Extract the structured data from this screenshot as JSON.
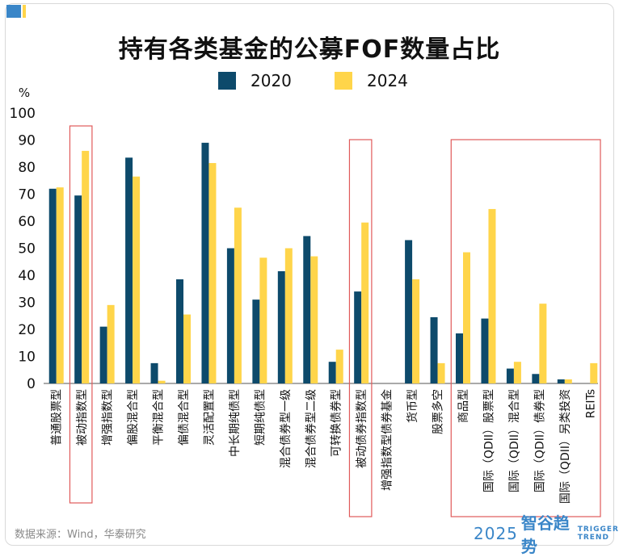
{
  "title": "持有各类基金的公募FOF数量占比",
  "unit_label": "%",
  "source": "数据来源：Wind，华泰研究",
  "brand": {
    "year": "2025",
    "name": "智谷趋势",
    "en_line1": "TRIGGER",
    "en_line2": "TREND"
  },
  "colors": {
    "s2020": "#0d4a6b",
    "s2024": "#ffd54a",
    "highlight": "#e05a5a",
    "axis": "#555555"
  },
  "chart_data": {
    "type": "bar",
    "title": "持有各类基金的公募FOF数量占比",
    "ylabel": "%",
    "ylim": [
      0,
      100
    ],
    "yticks": [
      0,
      10,
      20,
      30,
      40,
      50,
      60,
      70,
      80,
      90,
      100
    ],
    "grid": false,
    "legend": "top-center",
    "categories": [
      "普通股票型",
      "被动指数型",
      "增强指数型",
      "偏股混合型",
      "平衡混合型",
      "偏债混合型",
      "灵活配置型",
      "中长期纯债型",
      "短期纯债型",
      "混合债券型一级",
      "混合债券型二级",
      "可转换债券型",
      "被动债券指数型",
      "增强指数型债券基金",
      "货币型",
      "股票多空",
      "商品型",
      "国际（QDII）股票型",
      "国际（QDII）混合型",
      "国际（QDII）债券型",
      "国际（QDII）另类投资",
      "REITs"
    ],
    "series": [
      {
        "name": "2020",
        "values": [
          72,
          69.5,
          21,
          83.5,
          7.5,
          38.5,
          89,
          50,
          31,
          41.5,
          54.5,
          8,
          34,
          0,
          53,
          24.5,
          18.5,
          24,
          5.5,
          3.5,
          1.5,
          0
        ]
      },
      {
        "name": "2024",
        "values": [
          72.5,
          86,
          29,
          76.5,
          1,
          25.5,
          81.5,
          65,
          46.5,
          50,
          47,
          12.5,
          59.5,
          0,
          38.5,
          7.5,
          48.5,
          64.5,
          8,
          29.5,
          1.5,
          7.5
        ]
      }
    ],
    "highlight_groups": [
      [
        1
      ],
      [
        12
      ],
      [
        16,
        17,
        18,
        19,
        20,
        21
      ]
    ]
  }
}
